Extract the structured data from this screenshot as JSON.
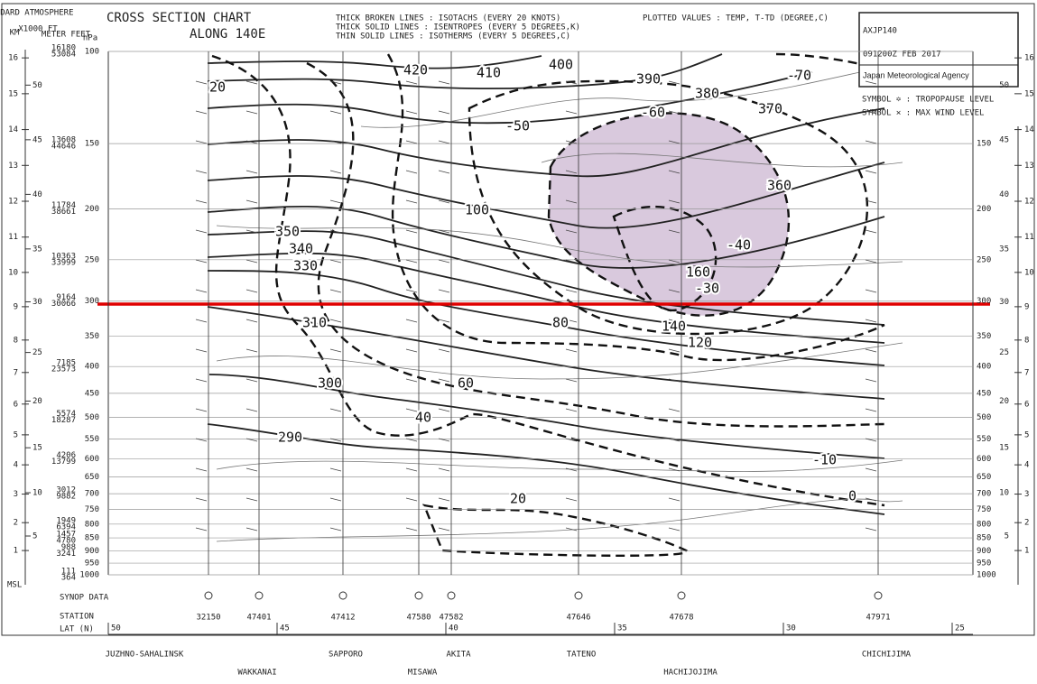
{
  "header": {
    "atmosphere": "STANDARD ATMOSPHERE",
    "km": "KM",
    "ft": "X1000 FT",
    "meter_feet": "METER FEET",
    "hpa": "hPa",
    "title": "CROSS SECTION CHART",
    "subtitle": "ALONG 140E",
    "legend": [
      "THICK BROKEN LINES : ISOTACHS (EVERY 20 KNOTS)",
      "THICK SOLID LINES : ISENTROPES (EVERY 5 DEGREES,K)",
      "THIN SOLID LINES : ISOTHERMS (EVERY 5 DEGREES,C)"
    ],
    "plotted": "PLOTTED VALUES : TEMP, T-TD (DEGREE,C)"
  },
  "id_box": {
    "code": "AXJP140",
    "time": "091200Z FEB 2017",
    "agency": "Japan Meteorological Agency"
  },
  "symbols": [
    "SYMBOL ✡ : TROPOPAUSE LEVEL",
    "SYMBOL ✕ : MAX WIND LEVEL"
  ],
  "pressure": [
    100,
    150,
    200,
    250,
    300,
    350,
    400,
    450,
    500,
    550,
    600,
    650,
    700,
    750,
    800,
    850,
    900,
    950,
    1000
  ],
  "heights_m": [
    16180,
    13608,
    11784,
    10363,
    9164,
    null,
    7185,
    null,
    5574,
    null,
    4206,
    null,
    3012,
    null,
    1949,
    1457,
    988,
    null,
    111
  ],
  "heights_ft": [
    53084,
    44646,
    38661,
    33999,
    30066,
    null,
    23573,
    null,
    18287,
    null,
    13799,
    null,
    9882,
    null,
    6394,
    4780,
    3241,
    null,
    364
  ],
  "km_ticks": [
    16,
    15,
    14,
    13,
    12,
    11,
    10,
    9,
    8,
    7,
    6,
    5,
    4,
    3,
    2,
    1
  ],
  "msl": "MSL",
  "ft_ticks": [
    50,
    45,
    40,
    35,
    30,
    25,
    20,
    15,
    10,
    5
  ],
  "lat_ticks": [
    50,
    45,
    40,
    35,
    30,
    25
  ],
  "synop": "SYNOP DATA",
  "station_label": "STATION",
  "lat_label": "LAT (N)",
  "stations": [
    "32150",
    "47401",
    "47412",
    "47580",
    "47582",
    "47646",
    "47678",
    "47971"
  ],
  "places": [
    "JUZHNO-SAHALINSK",
    "WAKKANAI",
    "SAPPORO",
    "MISAWA",
    "AKITA",
    "TATENO",
    "HACHIJOJIMA",
    "CHICHIJIMA"
  ],
  "isentropes": [
    290,
    300,
    310,
    330,
    340,
    350,
    360,
    370,
    380,
    390,
    400,
    410,
    420
  ],
  "isotachs": [
    20,
    20,
    40,
    60,
    80,
    100,
    120,
    140,
    160
  ],
  "isotherms": [
    -70,
    -60,
    -50,
    -40,
    -30,
    -10,
    0
  ]
}
